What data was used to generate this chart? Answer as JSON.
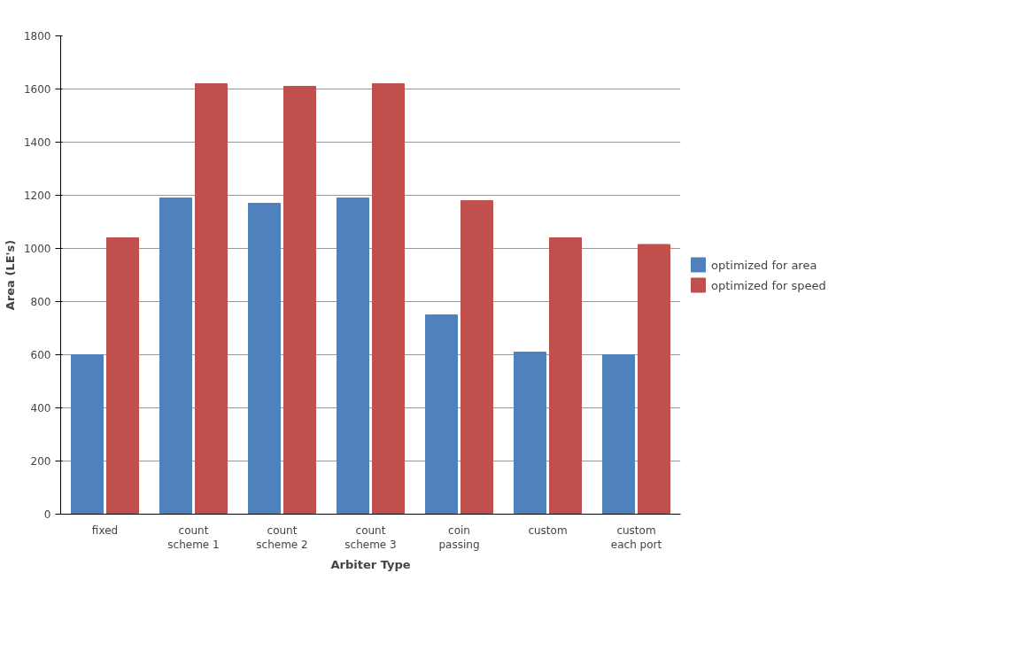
{
  "chart_data": {
    "type": "bar",
    "xlabel": "Arbiter Type",
    "ylabel": "Area (LE's)",
    "categories": [
      "fixed",
      "count scheme 1",
      "count scheme 2",
      "count scheme 3",
      "coin passing",
      "custom",
      "custom each port"
    ],
    "series": [
      {
        "name": "optimized for area",
        "color": "#4f81bd",
        "values": [
          600,
          1190,
          1170,
          1190,
          750,
          610,
          600
        ]
      },
      {
        "name": "optimized for speed",
        "color": "#c0504d",
        "values": [
          1040,
          1620,
          1610,
          1620,
          1180,
          1040,
          1015
        ]
      }
    ],
    "ylim": [
      0,
      1800
    ],
    "yticks": [
      0,
      200,
      400,
      600,
      800,
      1000,
      1200,
      1400,
      1600,
      1800
    ],
    "grid": "y",
    "legend": "right"
  }
}
